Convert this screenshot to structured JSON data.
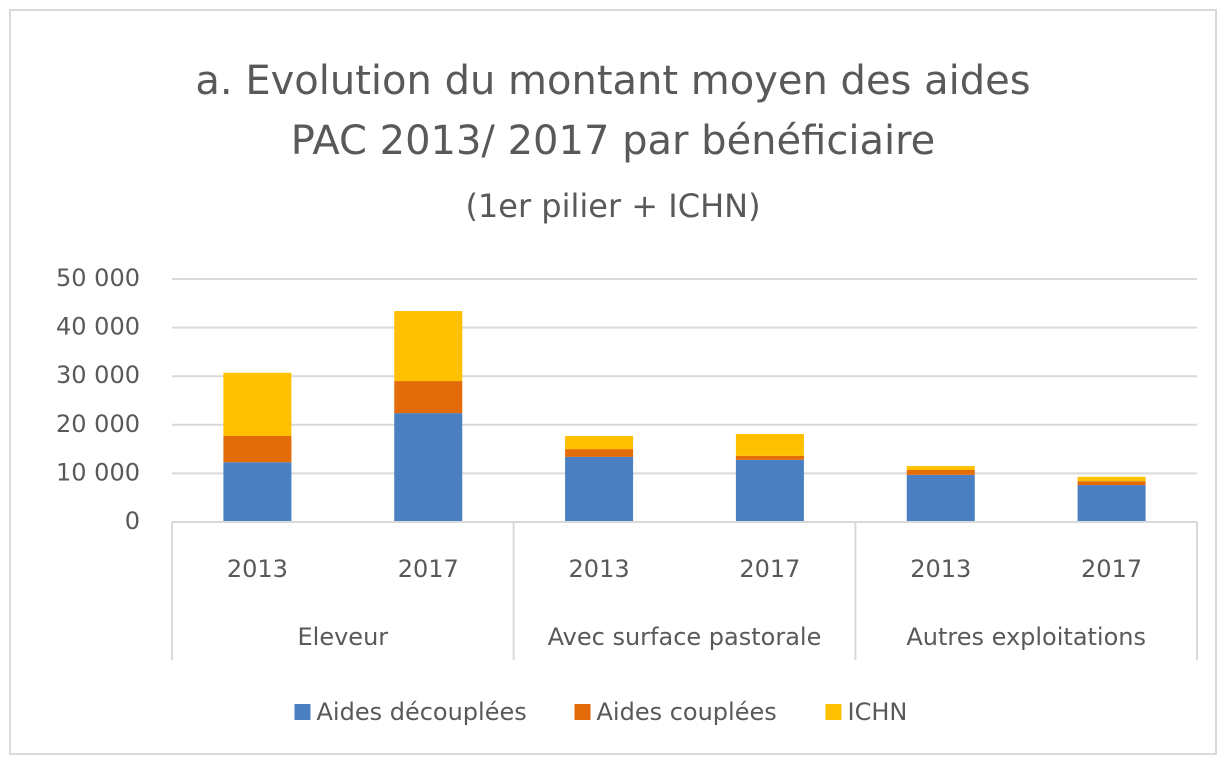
{
  "chart_data": {
    "type": "stacked_bar",
    "title": [
      "a. Evolution du montant moyen des aides",
      "PAC 2013/ 2017 par bénéficiaire"
    ],
    "subtitle": "(1er pilier + ICHN)",
    "categories": [
      "2013",
      "2017",
      "2013",
      "2017",
      "2013",
      "2017"
    ],
    "groups": [
      "Eleveur",
      "Avec surface pastorale",
      "Autres exploitations"
    ],
    "series": [
      {
        "name": "Aides découplées",
        "color": "#4a7fc1",
        "values": [
          12300,
          22400,
          13400,
          12800,
          9700,
          7600
        ]
      },
      {
        "name": "Aides couplées",
        "color": "#e36c09",
        "values": [
          5400,
          6600,
          1600,
          800,
          1000,
          800
        ]
      },
      {
        "name": "ICHN",
        "color": "#ffc000",
        "values": [
          13000,
          14400,
          2700,
          4500,
          800,
          900
        ]
      }
    ],
    "ylim": [
      0,
      50000
    ],
    "yticks": [
      0,
      {
        "value": 10000,
        "label": "10 000"
      },
      {
        "value": 20000,
        "label": "20 000"
      },
      {
        "value": 30000,
        "label": "30 000"
      },
      {
        "value": 40000,
        "label": "40 000"
      },
      {
        "value": 50000,
        "label": "50 000"
      }
    ],
    "grid": true,
    "legend": "bottom"
  }
}
